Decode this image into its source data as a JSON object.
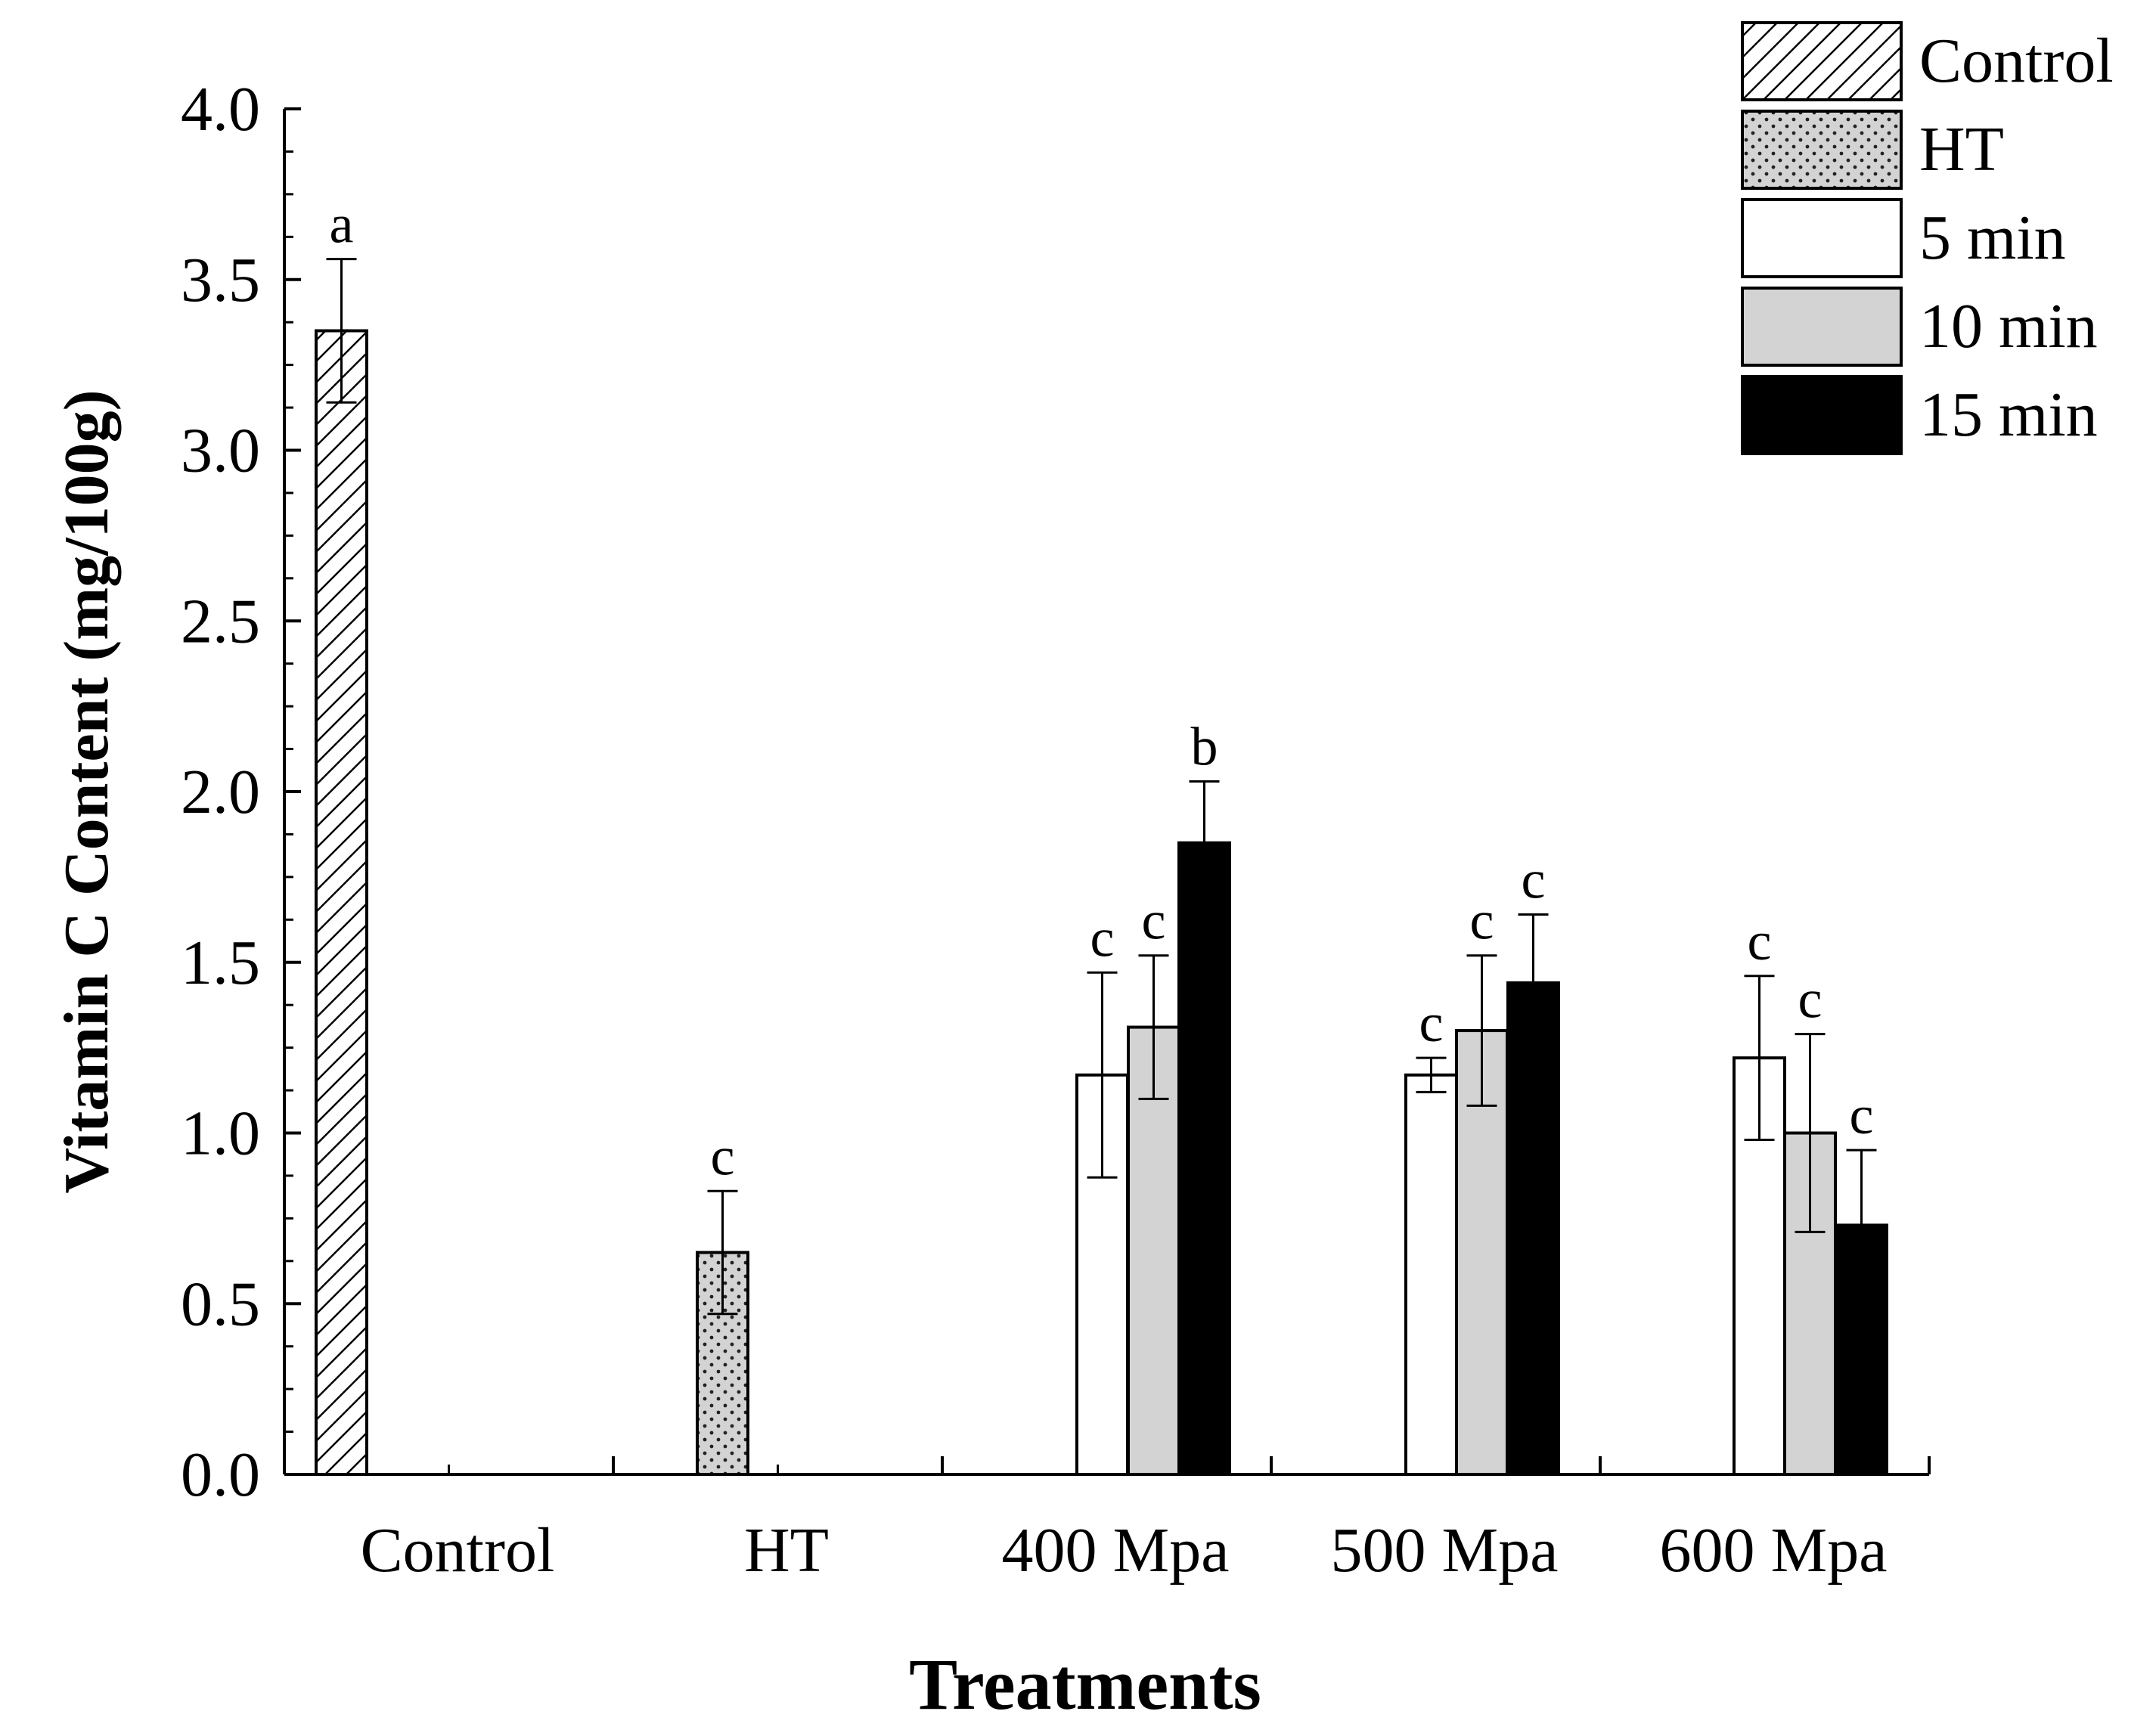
{
  "chart_data": {
    "type": "bar",
    "xlabel": "Treatments",
    "ylabel": "Vitamin C Content (mg/100g)",
    "ylim": [
      0,
      4.0
    ],
    "y_ticks": [
      "0.0",
      "0.5",
      "1.0",
      "1.5",
      "2.0",
      "2.5",
      "3.0",
      "3.5",
      "4.0"
    ],
    "categories": [
      "Control",
      "HT",
      "400 Mpa",
      "500 Mpa",
      "600 Mpa"
    ],
    "legend_position": "top-right",
    "series": [
      {
        "name": "Control",
        "pattern": "hatch",
        "fill": "#ffffff",
        "values": [
          3.35,
          null,
          null,
          null,
          null
        ],
        "errors": [
          0.21,
          null,
          null,
          null,
          null
        ],
        "letters": [
          "a",
          null,
          null,
          null,
          null
        ]
      },
      {
        "name": "HT",
        "pattern": "dots",
        "fill": "#d3d3d3",
        "values": [
          null,
          0.65,
          null,
          null,
          null
        ],
        "errors": [
          null,
          0.18,
          null,
          null,
          null
        ],
        "letters": [
          null,
          "c",
          null,
          null,
          null
        ]
      },
      {
        "name": "5 min",
        "pattern": "solid",
        "fill": "#ffffff",
        "values": [
          null,
          null,
          1.17,
          1.17,
          1.22
        ],
        "errors": [
          null,
          null,
          0.3,
          0.05,
          0.24
        ],
        "letters": [
          null,
          null,
          "c",
          "c",
          "c"
        ]
      },
      {
        "name": "10 min",
        "pattern": "solid",
        "fill": "#d3d3d3",
        "values": [
          null,
          null,
          1.31,
          1.3,
          1.0
        ],
        "errors": [
          null,
          null,
          0.21,
          0.22,
          0.29
        ],
        "letters": [
          null,
          null,
          "c",
          "c",
          "c"
        ]
      },
      {
        "name": "15 min",
        "pattern": "solid",
        "fill": "#000000",
        "values": [
          null,
          null,
          1.85,
          1.44,
          0.73
        ],
        "errors": [
          null,
          null,
          0.18,
          0.2,
          0.22
        ],
        "letters": [
          null,
          null,
          "b",
          "c",
          "c"
        ]
      }
    ]
  }
}
